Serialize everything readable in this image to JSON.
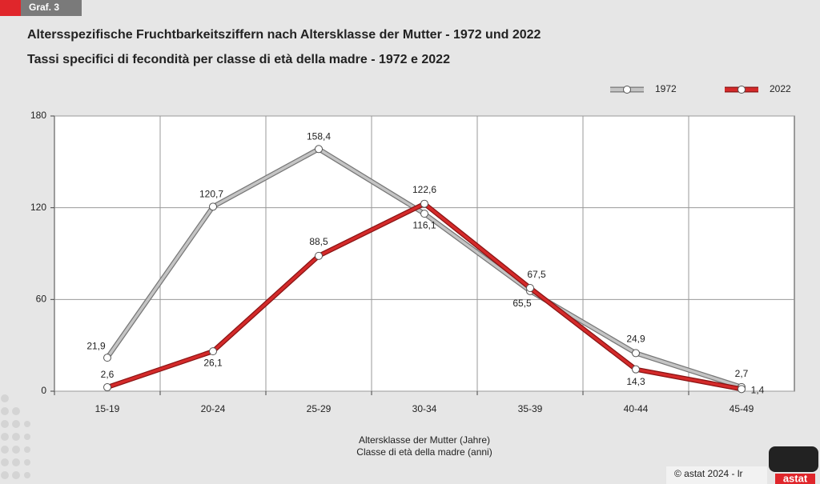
{
  "badge": "Graf. 3",
  "chart_data": {
    "type": "line",
    "title": "Altersspezifische Fruchtbarkeitsziffern nach Altersklasse der Mutter - 1972 und 2022",
    "subtitle": "Tassi specifici di fecondità per classe di età della madre - 1972 e 2022",
    "x_label": [
      "Altersklasse der Mutter (Jahre)",
      "Classe di età della madre (anni)"
    ],
    "categories": [
      "15-19",
      "20-24",
      "25-29",
      "30-34",
      "35-39",
      "40-44",
      "45-49"
    ],
    "series": [
      {
        "name": "1972",
        "color": "#c4c4c4",
        "values": [
          21.9,
          120.7,
          158.4,
          116.1,
          65.5,
          24.9,
          2.7
        ],
        "value_labels": [
          "21,9",
          "120,7",
          "158,4",
          "116,1",
          "65,5",
          "24,9",
          "2,7"
        ]
      },
      {
        "name": "2022",
        "color": "#d42a2a",
        "values": [
          2.6,
          26.1,
          88.5,
          122.6,
          67.5,
          14.3,
          1.4
        ],
        "value_labels": [
          "2,6",
          "26,1",
          "88,5",
          "122,6",
          "67,5",
          "14,3",
          "1,4"
        ]
      }
    ],
    "ylim": [
      0,
      180
    ],
    "yticks": [
      0,
      60,
      120,
      180
    ],
    "grid": true,
    "legend": "top-right"
  },
  "footer": "© astat 2024 - lr",
  "logo": "astat"
}
